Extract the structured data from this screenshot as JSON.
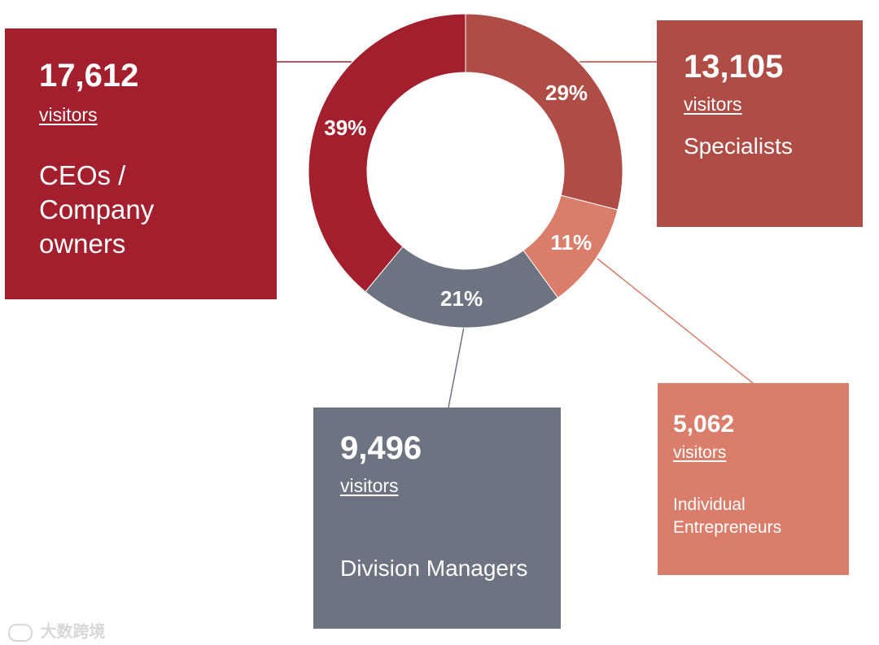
{
  "chart_data": {
    "type": "pie",
    "style": "donut",
    "slices": [
      {
        "name": "Specialists",
        "value": 13105,
        "percent": 29,
        "label": "29%",
        "color": "#af4c46"
      },
      {
        "name": "Individual Entrepreneurs",
        "value": 5062,
        "percent": 11,
        "label": "11%",
        "color": "#db7d6b"
      },
      {
        "name": "Division Managers",
        "value": 9496,
        "percent": 21,
        "label": "21%",
        "color": "#6d7380"
      },
      {
        "name": "CEOs / Company owners",
        "value": 17612,
        "percent": 39,
        "label": "39%",
        "color": "#a31f2d"
      }
    ]
  },
  "callouts": {
    "ceo": {
      "number": "17,612",
      "unit": "visitors",
      "label": "CEOs / Company owners"
    },
    "specialists": {
      "number": "13,105",
      "unit": "visitors",
      "label": "Specialists"
    },
    "division": {
      "number": "9,496",
      "unit": "visitors",
      "label": "Division Managers"
    },
    "individual": {
      "number": "5,062",
      "unit": "visitors",
      "label": "Individual Entrepreneurs"
    }
  },
  "watermark": {
    "text": "大数跨境"
  }
}
